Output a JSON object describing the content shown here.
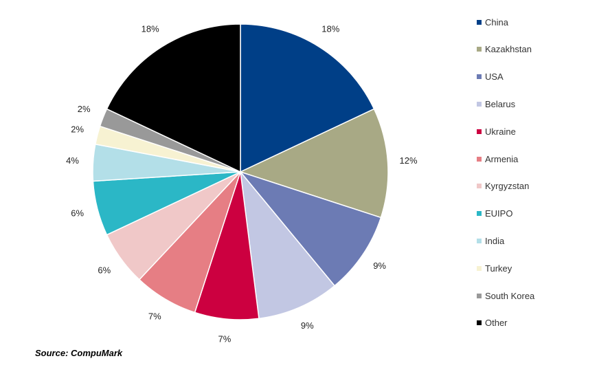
{
  "chart_data": {
    "type": "pie",
    "categories": [
      "China",
      "Kazakhstan",
      "USA",
      "Belarus",
      "Ukraine",
      "Armenia",
      "Kyrgyzstan",
      "EUIPO",
      "India",
      "Turkey",
      "South Korea",
      "Other"
    ],
    "values": [
      18,
      12,
      9,
      9,
      7,
      7,
      6,
      6,
      4,
      2,
      2,
      18
    ],
    "data_labels": [
      "18%",
      "12%",
      "9%",
      "9%",
      "7%",
      "7%",
      "6%",
      "6%",
      "4%",
      "2%",
      "2%",
      "18%"
    ],
    "colors": [
      "#003f87",
      "#a8a985",
      "#6c7bb4",
      "#c2c7e3",
      "#cc0040",
      "#e67e84",
      "#f0c8c8",
      "#2bb7c6",
      "#b3dfe8",
      "#f7f2d2",
      "#999999",
      "#000000"
    ],
    "start_angle": "12 o'clock",
    "direction": "clockwise",
    "legend_position": "right"
  },
  "source": "Source: CompuMark"
}
